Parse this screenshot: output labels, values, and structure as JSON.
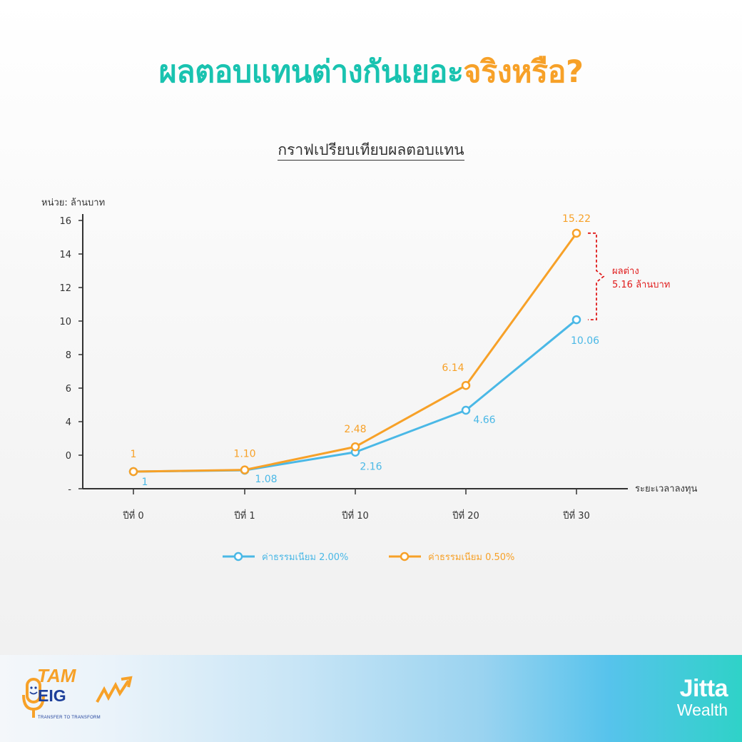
{
  "title": {
    "part1": "ผลตอบแทนต่างกันเยอะ",
    "part2": "จริงหรือ?"
  },
  "subtitle": "กราฟเปรียบเทียบผลตอบแทน",
  "colors": {
    "teal": "#19c3b0",
    "orange": "#f7a128",
    "blue": "#4ab8e6",
    "red": "#e01b1b",
    "axis": "#333333"
  },
  "chart_data": {
    "type": "line",
    "ylabel": "หน่วย: ล้านบาท",
    "xlabel": "ระยะเวลาลงทุน",
    "categories": [
      "ปีที่ 0",
      "ปีที่ 1",
      "ปีที่ 10",
      "ปีที่ 20",
      "ปีที่ 30"
    ],
    "y_ticks": [
      "16",
      "14",
      "12",
      "10",
      "8",
      "6",
      "4",
      "0",
      "-"
    ],
    "series": [
      {
        "name": "ค่าธรรมเนียม 2.00%",
        "color": "#4ab8e6",
        "values": [
          1,
          1.08,
          2.16,
          4.66,
          10.06
        ],
        "labels": [
          "1",
          "1.08",
          "2.16",
          "4.66",
          "10.06"
        ]
      },
      {
        "name": "ค่าธรรมเนียม 0.50%",
        "color": "#f7a128",
        "values": [
          1,
          1.1,
          2.48,
          6.14,
          15.22
        ],
        "labels": [
          "1",
          "1.10",
          "2.48",
          "6.14",
          "15.22"
        ]
      }
    ],
    "annotation": {
      "line1": "ผลต่าง",
      "line2": "5.16 ล้านบาท"
    },
    "legend_position": "bottom",
    "grid": false
  },
  "footer": {
    "left_logo": {
      "tam": "TAM",
      "eig": "EIG",
      "tagline": "TRANSFER TO TRANSFORM",
      "icon": "microphone-icon"
    },
    "brand": {
      "line1": "Jitta",
      "line2": "Wealth"
    }
  }
}
